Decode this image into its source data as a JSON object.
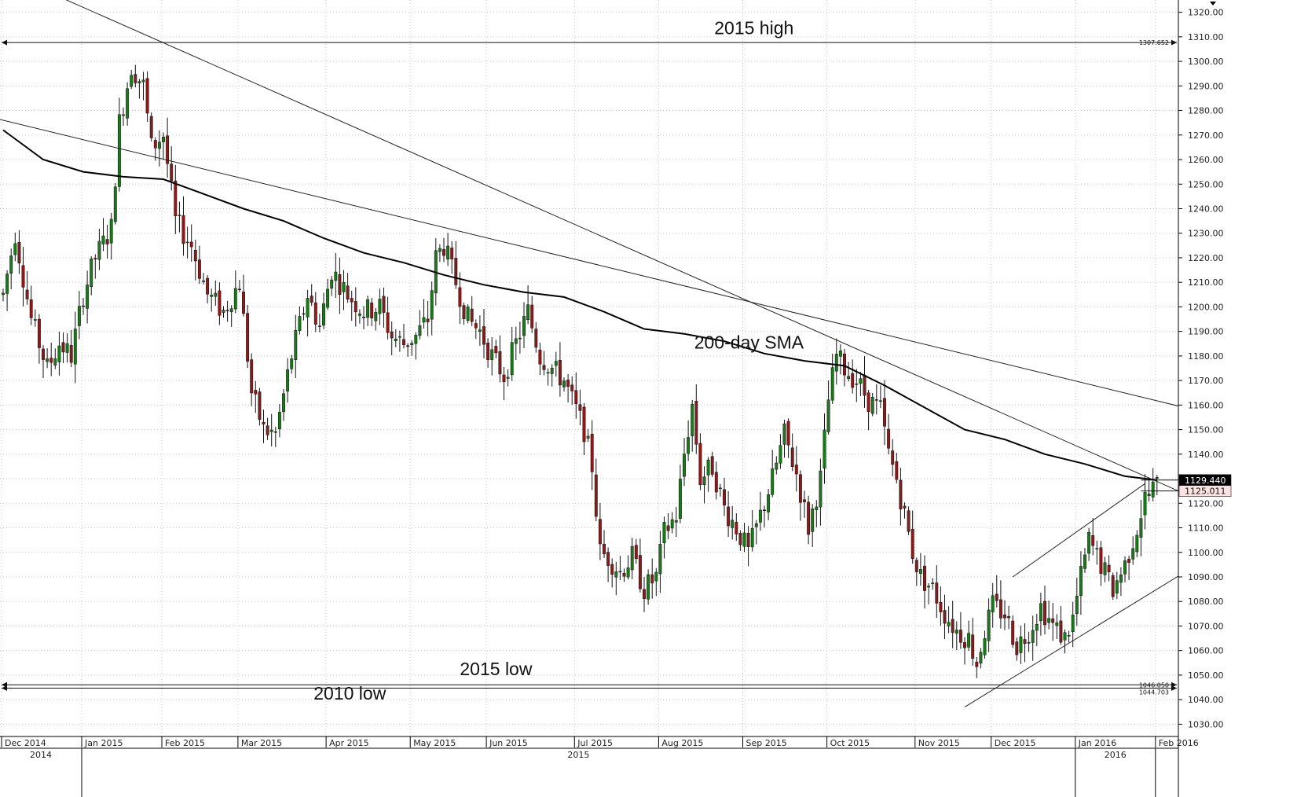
{
  "chart_data": {
    "type": "candlestick",
    "y_axis": {
      "min": 1025,
      "max": 1325,
      "ticks": [
        "1030.00",
        "1040.00",
        "1050.00",
        "1060.00",
        "1070.00",
        "1080.00",
        "1090.00",
        "1100.00",
        "1110.00",
        "1120.00",
        "1130.00",
        "1140.00",
        "1150.00",
        "1160.00",
        "1170.00",
        "1180.00",
        "1190.00",
        "1200.00",
        "1210.00",
        "1220.00",
        "1230.00",
        "1240.00",
        "1250.00",
        "1260.00",
        "1270.00",
        "1280.00",
        "1290.00",
        "1300.00",
        "1310.00",
        "1320.00"
      ],
      "tick_values": [
        1030,
        1040,
        1050,
        1060,
        1070,
        1080,
        1090,
        1100,
        1110,
        1120,
        1130,
        1140,
        1150,
        1160,
        1170,
        1180,
        1190,
        1200,
        1210,
        1220,
        1230,
        1240,
        1250,
        1260,
        1270,
        1280,
        1290,
        1300,
        1310,
        1320
      ]
    },
    "x_axis": {
      "months": [
        {
          "label": "Dec 2014",
          "pos": 0
        },
        {
          "label": "Jan 2015",
          "pos": 20
        },
        {
          "label": "Feb 2015",
          "pos": 40
        },
        {
          "label": "Mar 2015",
          "pos": 59
        },
        {
          "label": "Apr 2015",
          "pos": 81
        },
        {
          "label": "May 2015",
          "pos": 102
        },
        {
          "label": "Jun 2015",
          "pos": 121
        },
        {
          "label": "Jul 2015",
          "pos": 143
        },
        {
          "label": "Aug 2015",
          "pos": 164
        },
        {
          "label": "Sep 2015",
          "pos": 185
        },
        {
          "label": "Oct 2015",
          "pos": 206
        },
        {
          "label": "Nov 2015",
          "pos": 228
        },
        {
          "label": "Dec 2015",
          "pos": 247
        },
        {
          "label": "Jan 2016",
          "pos": 268
        },
        {
          "label": "Feb 2016",
          "pos": 288
        }
      ],
      "years": [
        {
          "label": "2014",
          "from": -0.5,
          "to": 20
        },
        {
          "label": "2015",
          "from": 20,
          "to": 268
        },
        {
          "label": "2016",
          "from": 268,
          "to": 288
        }
      ],
      "bar_count": 288
    },
    "waypoints": [
      [
        0,
        1205
      ],
      [
        3,
        1230
      ],
      [
        7,
        1195
      ],
      [
        11,
        1175
      ],
      [
        14,
        1185
      ],
      [
        17,
        1180
      ],
      [
        20,
        1205
      ],
      [
        23,
        1220
      ],
      [
        27,
        1232
      ],
      [
        29,
        1275
      ],
      [
        32,
        1298
      ],
      [
        35,
        1290
      ],
      [
        37,
        1265
      ],
      [
        40,
        1270
      ],
      [
        43,
        1235
      ],
      [
        47,
        1225
      ],
      [
        51,
        1205
      ],
      [
        55,
        1198
      ],
      [
        59,
        1210
      ],
      [
        62,
        1165
      ],
      [
        65,
        1150
      ],
      [
        68,
        1148
      ],
      [
        72,
        1180
      ],
      [
        76,
        1205
      ],
      [
        79,
        1192
      ],
      [
        82,
        1215
      ],
      [
        86,
        1205
      ],
      [
        90,
        1198
      ],
      [
        94,
        1200
      ],
      [
        97,
        1188
      ],
      [
        100,
        1185
      ],
      [
        103,
        1188
      ],
      [
        106,
        1195
      ],
      [
        108,
        1220
      ],
      [
        110,
        1225
      ],
      [
        113,
        1210
      ],
      [
        116,
        1195
      ],
      [
        119,
        1190
      ],
      [
        122,
        1180
      ],
      [
        125,
        1172
      ],
      [
        128,
        1185
      ],
      [
        131,
        1198
      ],
      [
        134,
        1180
      ],
      [
        137,
        1175
      ],
      [
        140,
        1170
      ],
      [
        143,
        1158
      ],
      [
        145,
        1150
      ],
      [
        147,
        1135
      ],
      [
        149,
        1100
      ],
      [
        151,
        1098
      ],
      [
        154,
        1092
      ],
      [
        157,
        1098
      ],
      [
        160,
        1085
      ],
      [
        163,
        1090
      ],
      [
        165,
        1108
      ],
      [
        168,
        1115
      ],
      [
        170,
        1140
      ],
      [
        172,
        1160
      ],
      [
        174,
        1130
      ],
      [
        177,
        1135
      ],
      [
        180,
        1118
      ],
      [
        183,
        1110
      ],
      [
        186,
        1100
      ],
      [
        189,
        1115
      ],
      [
        192,
        1130
      ],
      [
        195,
        1148
      ],
      [
        198,
        1132
      ],
      [
        201,
        1110
      ],
      [
        204,
        1130
      ],
      [
        206,
        1162
      ],
      [
        208,
        1180
      ],
      [
        210,
        1175
      ],
      [
        213,
        1170
      ],
      [
        216,
        1162
      ],
      [
        219,
        1158
      ],
      [
        221,
        1140
      ],
      [
        223,
        1130
      ],
      [
        225,
        1115
      ],
      [
        227,
        1100
      ],
      [
        229,
        1090
      ],
      [
        232,
        1085
      ],
      [
        235,
        1075
      ],
      [
        238,
        1068
      ],
      [
        241,
        1065
      ],
      [
        243,
        1055
      ],
      [
        245,
        1068
      ],
      [
        247,
        1078
      ],
      [
        250,
        1075
      ],
      [
        253,
        1062
      ],
      [
        256,
        1068
      ],
      [
        259,
        1078
      ],
      [
        262,
        1070
      ],
      [
        265,
        1065
      ],
      [
        267,
        1073
      ],
      [
        269,
        1090
      ],
      [
        271,
        1105
      ],
      [
        274,
        1095
      ],
      [
        277,
        1085
      ],
      [
        280,
        1095
      ],
      [
        283,
        1110
      ],
      [
        285,
        1122
      ],
      [
        287,
        1126
      ],
      [
        288,
        1127
      ]
    ],
    "sma": {
      "label": "200-day SMA",
      "points": [
        [
          0,
          1272
        ],
        [
          10,
          1260
        ],
        [
          20,
          1255
        ],
        [
          30,
          1253
        ],
        [
          40,
          1252
        ],
        [
          50,
          1246
        ],
        [
          60,
          1240
        ],
        [
          70,
          1235
        ],
        [
          80,
          1228
        ],
        [
          90,
          1222
        ],
        [
          100,
          1218
        ],
        [
          110,
          1213
        ],
        [
          120,
          1209
        ],
        [
          130,
          1206
        ],
        [
          140,
          1204
        ],
        [
          150,
          1198
        ],
        [
          160,
          1191
        ],
        [
          170,
          1189
        ],
        [
          180,
          1186
        ],
        [
          190,
          1181
        ],
        [
          200,
          1178
        ],
        [
          210,
          1176
        ],
        [
          220,
          1168
        ],
        [
          230,
          1159
        ],
        [
          240,
          1150
        ],
        [
          250,
          1146
        ],
        [
          260,
          1140
        ],
        [
          270,
          1136
        ],
        [
          280,
          1131
        ],
        [
          288,
          1129.44
        ]
      ]
    },
    "horizontal_lines": [
      {
        "name": "2015 high",
        "value": 1307.652,
        "label": "1307.652"
      },
      {
        "name": "2015 low",
        "value": 1046.05,
        "label": "1046.050"
      },
      {
        "name": "2010 low",
        "value": 1044.703,
        "label": "1044.703"
      }
    ],
    "trendlines": [
      {
        "from": [
          -5,
          1340
        ],
        "to": [
          310,
          1113
        ]
      },
      {
        "from": [
          -5,
          1278
        ],
        "to": [
          310,
          1153
        ]
      },
      {
        "from": [
          240,
          1037
        ],
        "to": [
          310,
          1107
        ]
      },
      {
        "from": [
          252,
          1090
        ],
        "to": [
          285,
          1128
        ]
      }
    ],
    "annotations": [
      {
        "text": "2015 high",
        "x": 35.5,
        "y": 1311
      },
      {
        "text": "200-day SMA",
        "x": 34.5,
        "y": 1183
      },
      {
        "text": "2015 low",
        "x": 22.8,
        "y": 1050
      },
      {
        "text": "2010 low",
        "x": 15.5,
        "y": 1040
      }
    ],
    "price_tags": [
      {
        "label": "1129.440",
        "value": 1129.44,
        "style": "dark"
      },
      {
        "label": "1125.011",
        "value": 1125.011,
        "style": "light"
      }
    ],
    "colors": {
      "bull": "#1a7a1a",
      "bear": "#8b1a1a",
      "sma": "#000000",
      "grid": "#c8c8c8",
      "tag_dark": "#000000",
      "tag_light": "#fbe3e3"
    }
  }
}
